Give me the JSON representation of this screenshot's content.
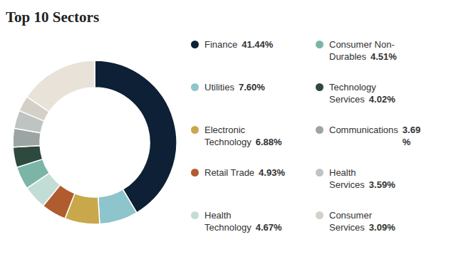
{
  "chart_data": {
    "type": "pie",
    "title": "Top 10 Sectors",
    "categories": [
      "Finance",
      "Utilities",
      "Electronic\nTechnology",
      "Retail Trade",
      "Health\nTechnology",
      "Consumer Non-\nDurables",
      "Technology\nServices",
      "Communications",
      "Health\nServices",
      "Consumer\nServices",
      null
    ],
    "values": [
      41.44,
      7.6,
      6.88,
      4.93,
      4.67,
      4.51,
      4.02,
      3.69,
      3.59,
      3.09,
      15.57
    ],
    "value_labels": [
      "41.44%",
      "7.60%",
      "6.88%",
      "4.93%",
      "4.67%",
      "4.51%",
      "4.02%",
      "3.69\n%",
      "3.59%",
      "3.09%",
      null
    ],
    "colors": [
      "#0d2035",
      "#8ec4cc",
      "#c8a84b",
      "#b05c2e",
      "#c2ddd5",
      "#7ab5a8",
      "#2e4a3e",
      "#9ca5a3",
      "#bfc4c2",
      "#d4d0c8",
      "#e8e2d8"
    ],
    "legend": "right"
  }
}
